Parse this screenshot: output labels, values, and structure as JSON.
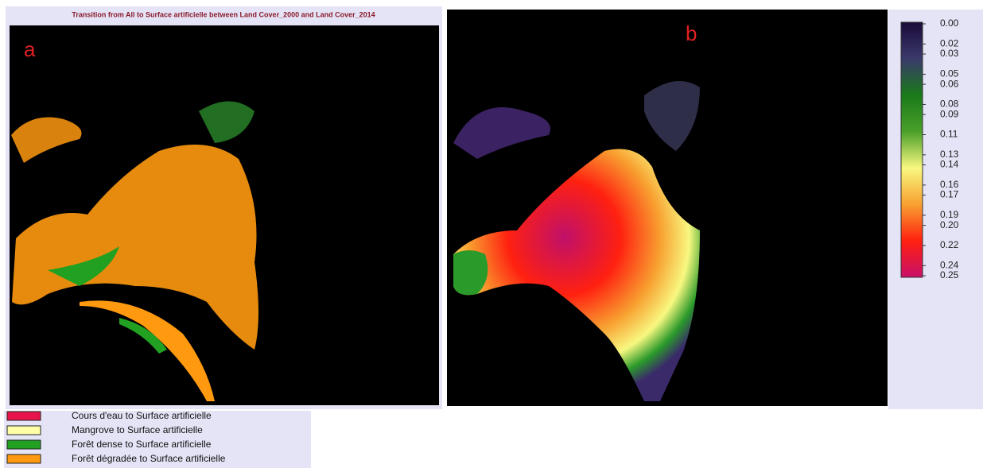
{
  "panel_a": {
    "title": "Transition from All to Surface artificielle between Land Cover_2000 and Land Cover_2014",
    "label": "a"
  },
  "panel_b": {
    "label": "b",
    "colorbar": {
      "colors": [
        "#1a0a3a",
        "#3a3a6a",
        "#1a7a1a",
        "#4aa02a",
        "#f8f880",
        "#f8a030",
        "#ff2010",
        "#c8106a"
      ],
      "range": [
        0,
        0.25
      ],
      "ticks": [
        {
          "value": 0,
          "label": "0.00"
        },
        0.02,
        0.03,
        0.05,
        0.06,
        0.08,
        0.09,
        0.11,
        0.13,
        0.14,
        0.16,
        0.17,
        0.19,
        {
          "value": 0.2,
          "label": "0.20"
        },
        0.22,
        0.24,
        0.25
      ]
    }
  },
  "legend": {
    "items": [
      {
        "label": "Cours d'eau to Surface artificielle",
        "color": "#e8144c"
      },
      {
        "label": "Mangrove to Surface artificielle",
        "color": "#ffffa8"
      },
      {
        "label": "Forêt dense to Surface artificielle",
        "color": "#22a022"
      },
      {
        "label": "Forêt dégradée to Surface artificielle",
        "color": "#ff9a10"
      }
    ]
  }
}
